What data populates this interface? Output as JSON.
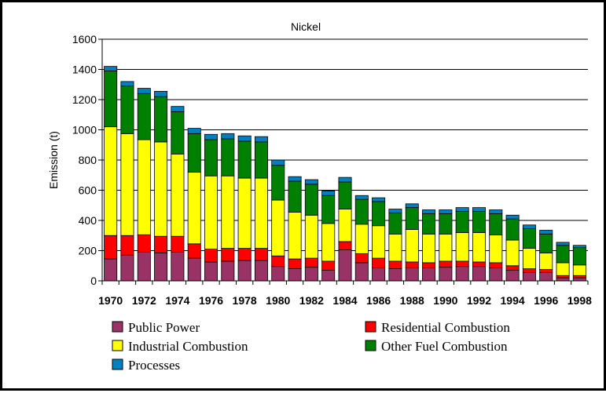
{
  "chart_data": {
    "type": "bar",
    "stacked": true,
    "title": "Nickel",
    "ylabel": "Emission (t)",
    "xlabel": "",
    "ylim": [
      0,
      1600
    ],
    "yticks": [
      0,
      200,
      400,
      600,
      800,
      1000,
      1200,
      1400,
      1600
    ],
    "grid": true,
    "legend_position": "bottom",
    "categories": [
      "1970",
      "1971",
      "1972",
      "1973",
      "1974",
      "1975",
      "1976",
      "1977",
      "1978",
      "1979",
      "1980",
      "1981",
      "1982",
      "1983",
      "1984",
      "1985",
      "1986",
      "1987",
      "1988",
      "1989",
      "1990",
      "1991",
      "1992",
      "1993",
      "1994",
      "1995",
      "1996",
      "1997",
      "1998"
    ],
    "x_tick_labels": [
      "1970",
      "",
      "1972",
      "",
      "1974",
      "",
      "1976",
      "",
      "1978",
      "",
      "1980",
      "",
      "1982",
      "",
      "1984",
      "",
      "1986",
      "",
      "1988",
      "",
      "1990",
      "",
      "1992",
      "",
      "1994",
      "",
      "1996",
      "",
      "1998"
    ],
    "series": [
      {
        "name": "Public Power",
        "color": "#993366",
        "values": [
          145,
          170,
          190,
          185,
          190,
          150,
          125,
          130,
          135,
          135,
          95,
          80,
          90,
          70,
          205,
          120,
          85,
          80,
          85,
          85,
          90,
          95,
          95,
          85,
          70,
          55,
          55,
          20,
          20
        ]
      },
      {
        "name": "Residential Combustion",
        "color": "#ff0000",
        "values": [
          155,
          130,
          115,
          110,
          105,
          95,
          85,
          85,
          80,
          80,
          70,
          65,
          60,
          60,
          55,
          60,
          65,
          50,
          40,
          35,
          40,
          35,
          30,
          35,
          30,
          25,
          20,
          15,
          15
        ]
      },
      {
        "name": "Industrial Combustion",
        "color": "#ffff00",
        "values": [
          720,
          675,
          630,
          625,
          545,
          475,
          485,
          480,
          465,
          465,
          370,
          310,
          285,
          250,
          215,
          195,
          215,
          180,
          215,
          190,
          180,
          190,
          195,
          185,
          170,
          135,
          110,
          85,
          70
        ]
      },
      {
        "name": "Other Fuel Combustion",
        "color": "#008000",
        "values": [
          370,
          315,
          305,
          300,
          280,
          255,
          240,
          245,
          245,
          240,
          230,
          205,
          205,
          185,
          180,
          165,
          160,
          140,
          145,
          135,
          135,
          140,
          140,
          140,
          140,
          130,
          125,
          115,
          115
        ]
      },
      {
        "name": "Processes",
        "color": "#0080c0",
        "values": [
          30,
          30,
          35,
          35,
          35,
          35,
          35,
          35,
          35,
          35,
          35,
          30,
          30,
          30,
          30,
          25,
          25,
          25,
          25,
          25,
          25,
          25,
          25,
          25,
          25,
          25,
          25,
          20,
          15
        ]
      }
    ]
  },
  "legend": {
    "items": [
      {
        "label": "Public Power",
        "color": "#993366"
      },
      {
        "label": "Residential Combustion",
        "color": "#ff0000"
      },
      {
        "label": "Industrial Combustion",
        "color": "#ffff00"
      },
      {
        "label": "Other Fuel Combustion",
        "color": "#008000"
      },
      {
        "label": "Processes",
        "color": "#0080c0"
      }
    ]
  }
}
